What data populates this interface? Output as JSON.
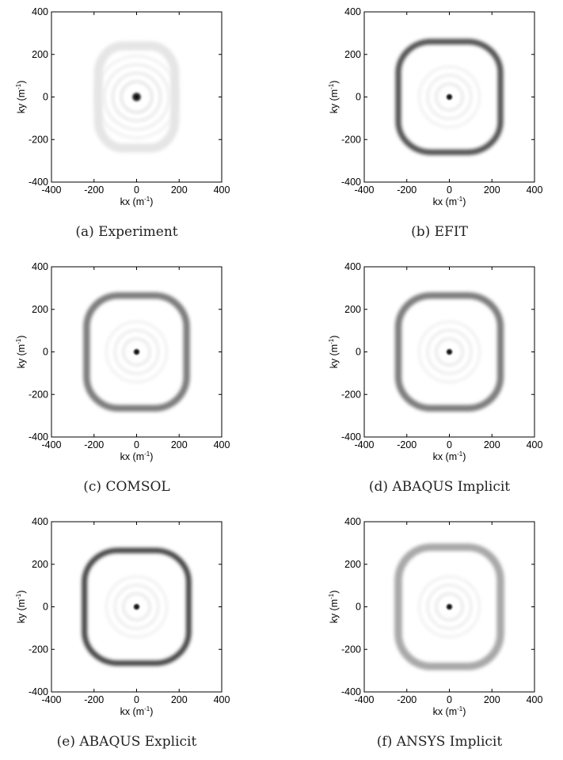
{
  "figure": {
    "panels": [
      {
        "caption": "(a) Experiment"
      },
      {
        "caption": "(b) EFIT"
      },
      {
        "caption": "(c) COMSOL"
      },
      {
        "caption": "(d) ABAQUS Implicit"
      },
      {
        "caption": "(e) ABAQUS Explicit"
      },
      {
        "caption": "(f) ANSYS Implicit"
      }
    ]
  },
  "chart_data": [
    {
      "type": "heatmap",
      "caption": "(a) Experiment",
      "xlabel": "kx (m-1)",
      "ylabel": "ky (m-1)",
      "xlim": [
        -400,
        400
      ],
      "ylim": [
        -400,
        400
      ],
      "xticks": [
        -400,
        -200,
        0,
        200,
        400
      ],
      "yticks": [
        -400,
        -200,
        0,
        200,
        400
      ],
      "colormap": "grayscale (white = low, black = high)",
      "center_peak": {
        "kx": 0,
        "ky": 0,
        "intensity": 1.0,
        "radius": 32
      },
      "ring": {
        "shape": "rounded rectangle",
        "half_width_kx": 180,
        "half_height_ky": 240,
        "intensity": 0.12
      },
      "concentric_rings": 4
    },
    {
      "type": "heatmap",
      "caption": "(b) EFIT",
      "xlabel": "kx (m-1)",
      "ylabel": "ky (m-1)",
      "xlim": [
        -400,
        400
      ],
      "ylim": [
        -400,
        400
      ],
      "xticks": [
        -400,
        -200,
        0,
        200,
        400
      ],
      "yticks": [
        -400,
        -200,
        0,
        200,
        400
      ],
      "colormap": "grayscale (white = low, black = high)",
      "center_peak": {
        "kx": 0,
        "ky": 0,
        "intensity": 1.0,
        "radius": 22
      },
      "ring": {
        "shape": "rounded rectangle",
        "half_width_kx": 240,
        "half_height_ky": 260,
        "intensity": 0.8
      },
      "concentric_rings": 3
    },
    {
      "type": "heatmap",
      "caption": "(c) COMSOL",
      "xlabel": "kx (m-1)",
      "ylabel": "ky (m-1)",
      "xlim": [
        -400,
        400
      ],
      "ylim": [
        -400,
        400
      ],
      "xticks": [
        -400,
        -200,
        0,
        200,
        400
      ],
      "yticks": [
        -400,
        -200,
        0,
        200,
        400
      ],
      "colormap": "grayscale (white = low, black = high)",
      "center_peak": {
        "kx": 0,
        "ky": 0,
        "intensity": 1.0,
        "radius": 22
      },
      "ring": {
        "shape": "rounded rectangle",
        "half_width_kx": 235,
        "half_height_ky": 265,
        "intensity": 0.6
      },
      "concentric_rings": 3
    },
    {
      "type": "heatmap",
      "caption": "(d) ABAQUS Implicit",
      "xlabel": "kx (m-1)",
      "ylabel": "ky (m-1)",
      "xlim": [
        -400,
        400
      ],
      "ylim": [
        -400,
        400
      ],
      "xticks": [
        -400,
        -200,
        0,
        200,
        400
      ],
      "yticks": [
        -400,
        -200,
        0,
        200,
        400
      ],
      "colormap": "grayscale (white = low, black = high)",
      "center_peak": {
        "kx": 0,
        "ky": 0,
        "intensity": 1.0,
        "radius": 22
      },
      "ring": {
        "shape": "rounded rectangle",
        "half_width_kx": 240,
        "half_height_ky": 265,
        "intensity": 0.6
      },
      "concentric_rings": 3
    },
    {
      "type": "heatmap",
      "caption": "(e) ABAQUS Explicit",
      "xlabel": "kx (m-1)",
      "ylabel": "ky (m-1)",
      "xlim": [
        -400,
        400
      ],
      "ylim": [
        -400,
        400
      ],
      "xticks": [
        -400,
        -200,
        0,
        200,
        400
      ],
      "yticks": [
        -400,
        -200,
        0,
        200,
        400
      ],
      "colormap": "grayscale (white = low, black = high)",
      "center_peak": {
        "kx": 0,
        "ky": 0,
        "intensity": 1.0,
        "radius": 22
      },
      "ring": {
        "shape": "rounded rectangle",
        "half_width_kx": 245,
        "half_height_ky": 265,
        "intensity": 0.85
      },
      "concentric_rings": 3
    },
    {
      "type": "heatmap",
      "caption": "(f) ANSYS Implicit",
      "xlabel": "kx (m-1)",
      "ylabel": "ky (m-1)",
      "xlim": [
        -400,
        400
      ],
      "ylim": [
        -400,
        400
      ],
      "xticks": [
        -400,
        -200,
        0,
        200,
        400
      ],
      "yticks": [
        -400,
        -200,
        0,
        200,
        400
      ],
      "colormap": "grayscale (white = low, black = high)",
      "center_peak": {
        "kx": 0,
        "ky": 0,
        "intensity": 1.0,
        "radius": 22
      },
      "ring": {
        "shape": "rounded rectangle",
        "half_width_kx": 240,
        "half_height_ky": 280,
        "intensity": 0.4
      },
      "concentric_rings": 3
    }
  ]
}
